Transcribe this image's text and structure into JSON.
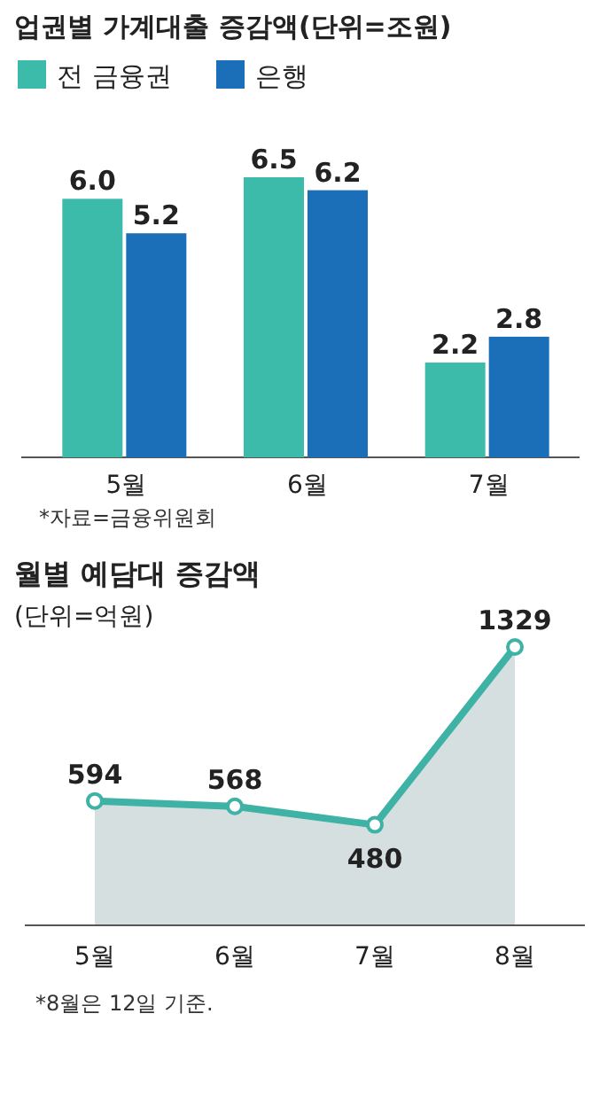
{
  "chart_data": [
    {
      "type": "bar",
      "title": "업권별 가계대출 증감액(단위=조원)",
      "categories": [
        "5월",
        "6월",
        "7월"
      ],
      "series": [
        {
          "name": "전 금융권",
          "color": "#3dbbaa",
          "values": [
            6.0,
            6.5,
            2.2
          ],
          "value_labels": [
            "6.0",
            "6.5",
            "2.2"
          ]
        },
        {
          "name": "은행",
          "color": "#1a6fb8",
          "values": [
            5.2,
            6.2,
            2.8
          ],
          "value_labels": [
            "5.2",
            "6.2",
            "2.8"
          ]
        }
      ],
      "legend": "top left",
      "annotations": [
        "*자료=금융위원회"
      ]
    },
    {
      "type": "area",
      "title": "월별 예담대 증감액",
      "subtitle": "(단위=억원)",
      "categories": [
        "5월",
        "6월",
        "7월",
        "8월"
      ],
      "series": [
        {
          "color": "#3fb2a6",
          "values": [
            594,
            568,
            480,
            1329
          ]
        }
      ],
      "marker": "circle",
      "data_labels": true,
      "annotations": [
        "*8월은 12일 기준."
      ]
    }
  ]
}
